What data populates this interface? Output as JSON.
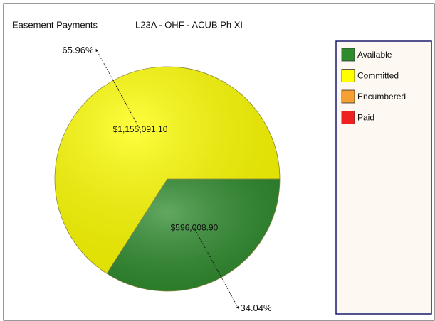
{
  "chart_data": {
    "type": "pie",
    "title": "Easement Payments",
    "subtitle": "L23A - OHF - ACUB Ph XI",
    "categories": [
      "Available",
      "Committed",
      "Encumbered",
      "Paid"
    ],
    "values": [
      34.04,
      65.96,
      0,
      0
    ],
    "value_labels": [
      "34.04%",
      "65.96%",
      null,
      null
    ],
    "amounts": [
      596008.9,
      1155091.1,
      0,
      0
    ],
    "amount_labels": [
      "$596,008.90",
      "$1,155,091.10",
      null,
      null
    ],
    "colors": [
      "#2e8b2e",
      "#ffff00",
      "#f5a030",
      "#ee2020"
    ],
    "legend": "right"
  }
}
